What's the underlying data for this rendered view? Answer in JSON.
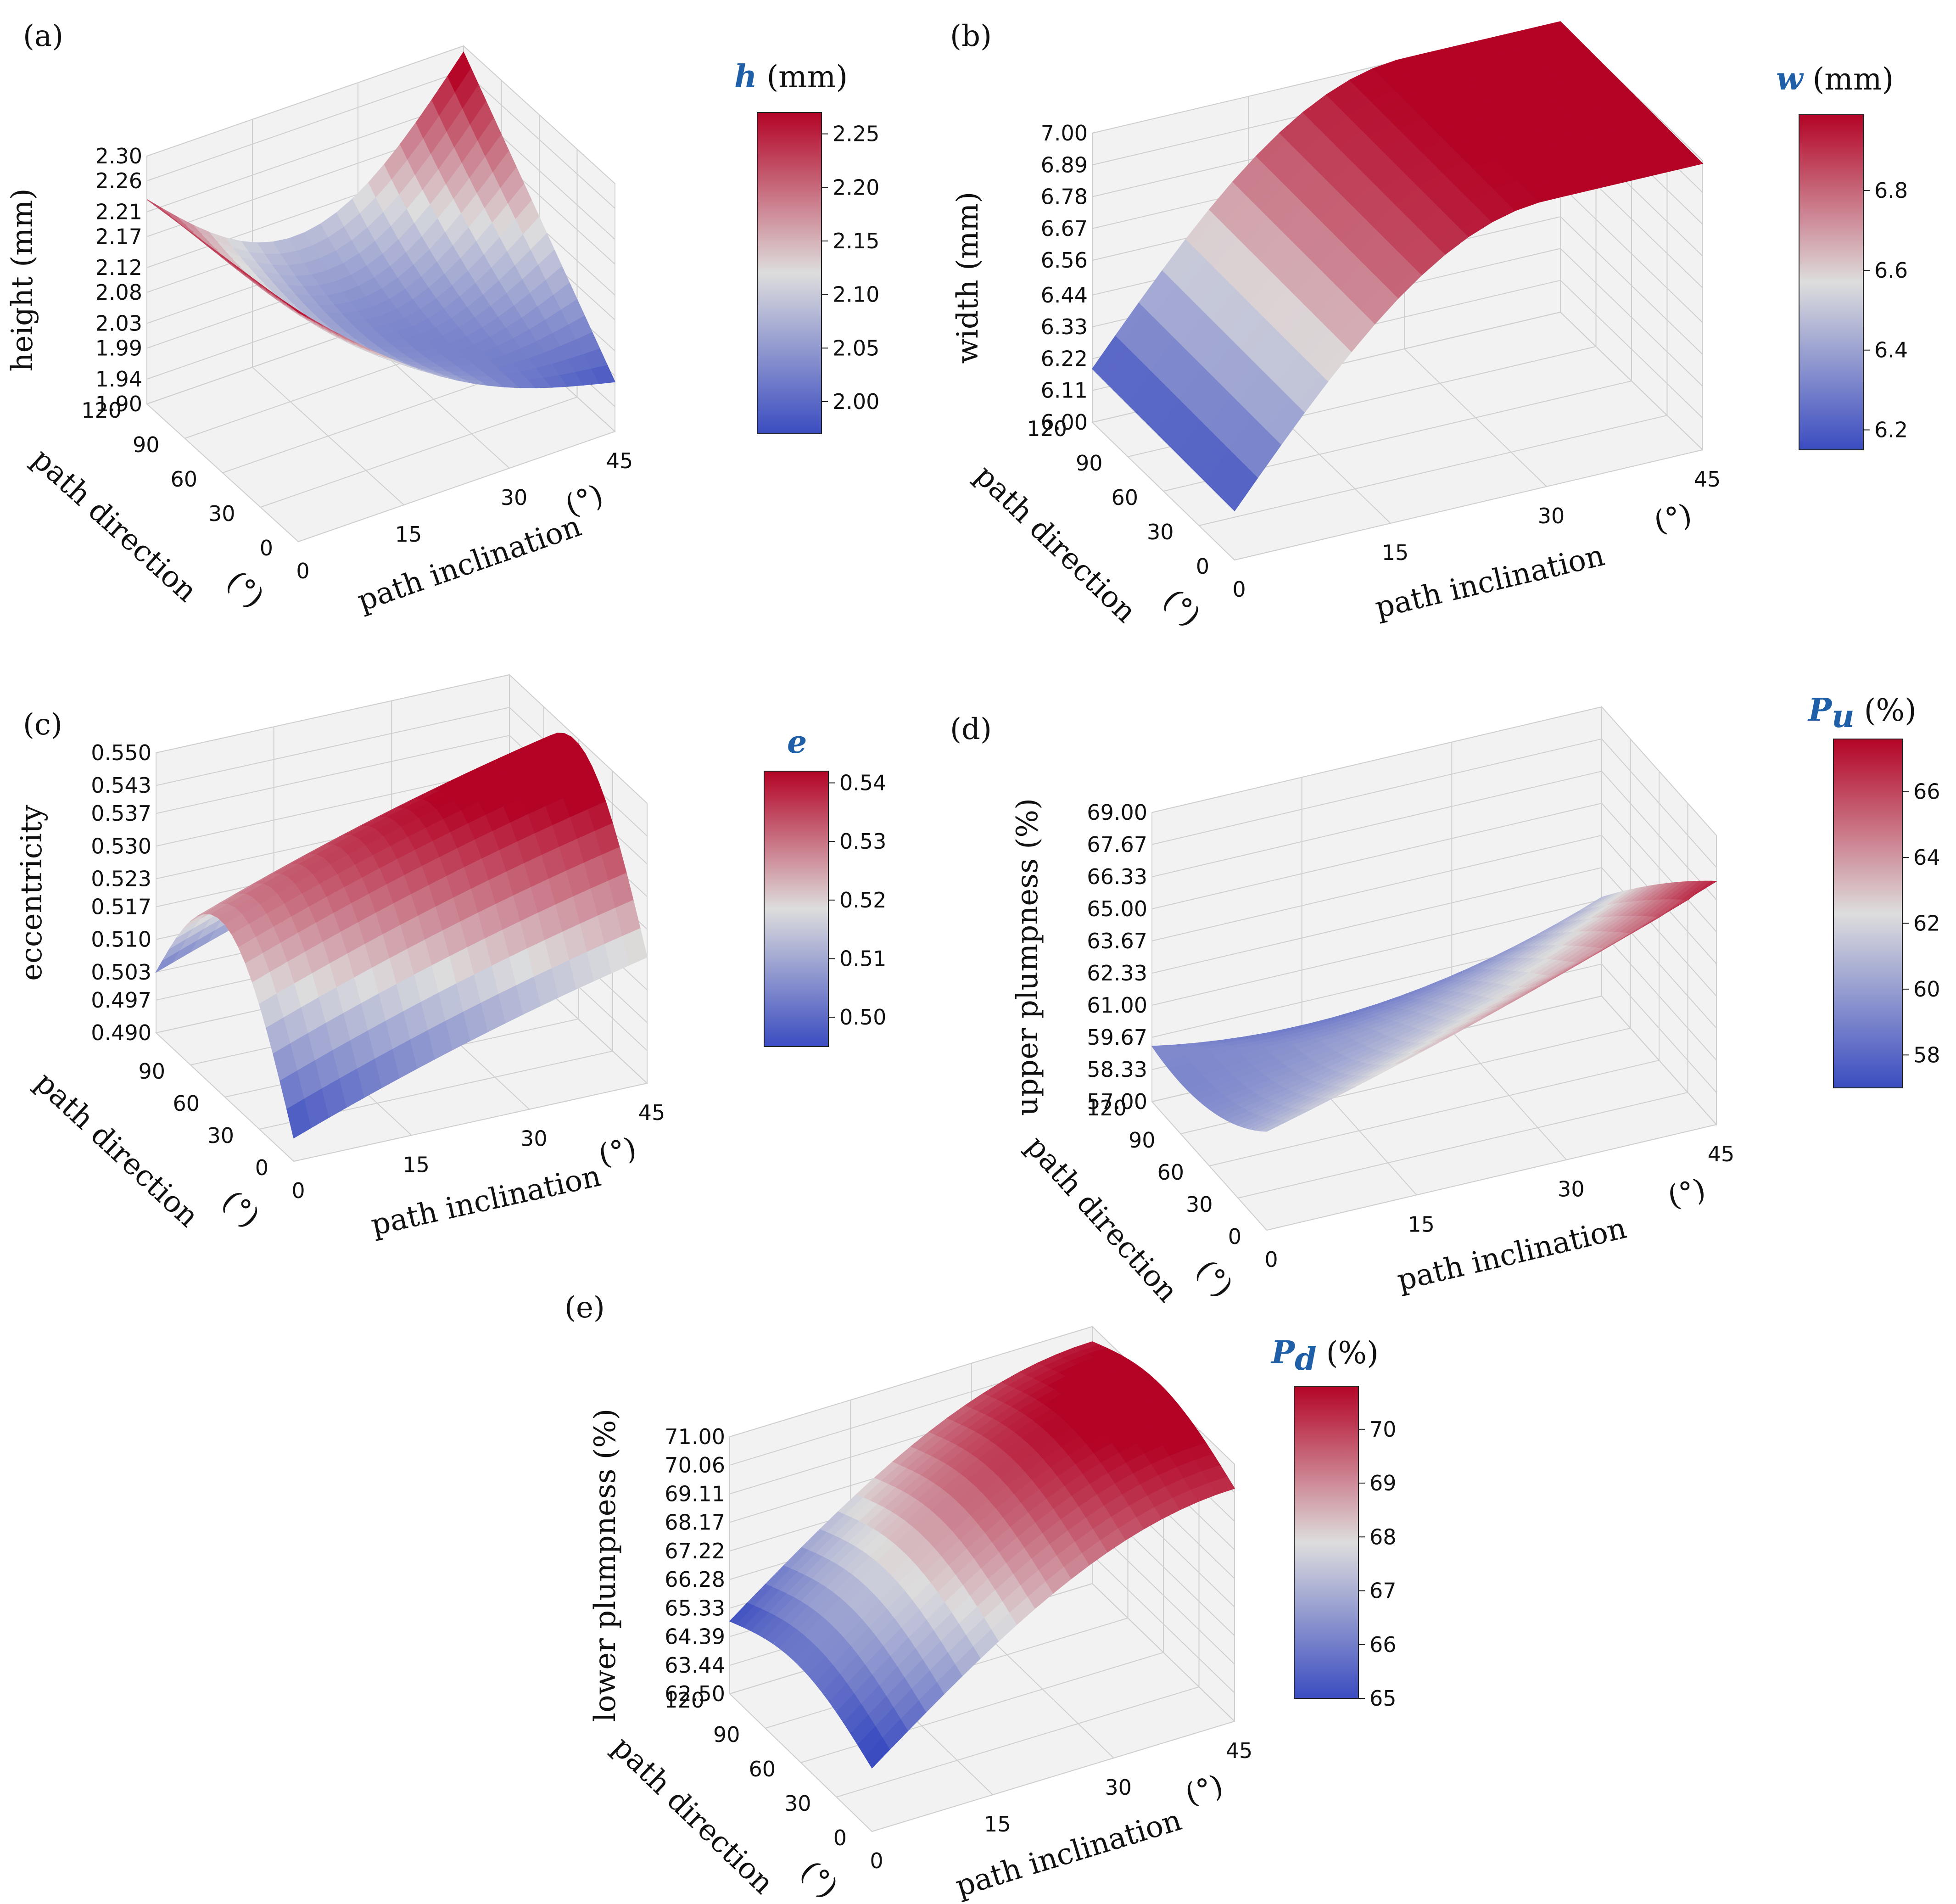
{
  "figure": {
    "colormap": {
      "name": "coolwarm",
      "low": "#3b4cc0",
      "mid": "#dddddd",
      "high": "#b40426"
    }
  },
  "chart_data": [
    {
      "id": "a",
      "panel_label": "(a)",
      "type": "surface",
      "zlabel": "height   (mm)",
      "xlabel": "path inclination",
      "xunit": "(°)",
      "ylabel": "path direction",
      "yunit": "(°)",
      "x_ticks": [
        "0",
        "15",
        "30",
        "45"
      ],
      "y_ticks": [
        "0",
        "30",
        "60",
        "90",
        "120"
      ],
      "z_ticks": [
        "1.90",
        "1.94",
        "1.99",
        "2.03",
        "2.08",
        "2.12",
        "2.17",
        "2.21",
        "2.26",
        "2.30"
      ],
      "xlim": [
        0,
        45
      ],
      "ylim": [
        0,
        120
      ],
      "zlim": [
        1.9,
        2.3
      ],
      "colorbar": {
        "symbol": "h",
        "unit": "(mm)",
        "ticks": [
          "2.00",
          "2.05",
          "2.10",
          "2.15",
          "2.20",
          "2.25"
        ],
        "range": [
          1.97,
          2.27
        ]
      },
      "surface": {
        "corners": {
          "x0_y0": 2.27,
          "x45_y0": 1.98,
          "x0_y120": 2.23,
          "x45_y120": 2.29
        },
        "saddle_min": 2.1
      }
    },
    {
      "id": "b",
      "panel_label": "(b)",
      "type": "surface",
      "zlabel": "width  (mm)",
      "xlabel": "path inclination",
      "xunit": "(°)",
      "ylabel": "path direction",
      "yunit": "(°)",
      "x_ticks": [
        "0",
        "15",
        "30",
        "45"
      ],
      "y_ticks": [
        "0",
        "30",
        "60",
        "90",
        "120"
      ],
      "z_ticks": [
        "6.00",
        "6.11",
        "6.22",
        "6.33",
        "6.44",
        "6.56",
        "6.67",
        "6.78",
        "6.89",
        "7.00"
      ],
      "xlim": [
        0,
        45
      ],
      "ylim": [
        0,
        120
      ],
      "zlim": [
        6.0,
        7.0
      ],
      "colorbar": {
        "symbol": "w",
        "unit": "(mm)",
        "ticks": [
          "6.2",
          "6.4",
          "6.6",
          "6.8"
        ],
        "range": [
          6.15,
          6.99
        ]
      },
      "surface": {
        "corners": {
          "x0_y0": 6.16,
          "x45_y0": 6.98,
          "x0_y120": 6.2,
          "x45_y120": 6.99
        },
        "peak_at_x": 30
      }
    },
    {
      "id": "c",
      "panel_label": "(c)",
      "type": "surface",
      "zlabel": "eccentricity",
      "xlabel": "path inclination",
      "xunit": "(°)",
      "ylabel": "path direction",
      "yunit": "(°)",
      "x_ticks": [
        "0",
        "15",
        "30",
        "45"
      ],
      "y_ticks": [
        "0",
        "30",
        "60",
        "90"
      ],
      "z_ticks": [
        "0.490",
        "0.497",
        "0.503",
        "0.510",
        "0.517",
        "0.523",
        "0.530",
        "0.537",
        "0.543",
        "0.550"
      ],
      "xlim": [
        0,
        45
      ],
      "ylim": [
        0,
        120
      ],
      "zlim": [
        0.49,
        0.55
      ],
      "colorbar": {
        "symbol": "e",
        "unit": "",
        "ticks": [
          "0.50",
          "0.51",
          "0.52",
          "0.53",
          "0.54"
        ],
        "range": [
          0.495,
          0.542
        ]
      },
      "surface": {
        "corners": {
          "x0_y0": 0.495,
          "x45_y0": 0.515,
          "x0_y120": 0.508,
          "x45_y120": 0.542
        },
        "ridge_y": 60
      }
    },
    {
      "id": "d",
      "panel_label": "(d)",
      "type": "surface",
      "zlabel": "upper plumpness (%)",
      "xlabel": "path inclination",
      "xunit": "(°)",
      "ylabel": "path direction",
      "yunit": "(°)",
      "x_ticks": [
        "0",
        "15",
        "30",
        "45"
      ],
      "y_ticks": [
        "0",
        "30",
        "60",
        "90",
        "120"
      ],
      "z_ticks": [
        "57.00",
        "58.33",
        "59.67",
        "61.00",
        "62.33",
        "63.67",
        "65.00",
        "66.33",
        "67.67",
        "69.00"
      ],
      "xlim": [
        0,
        45
      ],
      "ylim": [
        0,
        120
      ],
      "zlim": [
        57,
        69
      ],
      "colorbar": {
        "symbol": "P",
        "subscript": "u",
        "unit": "(%)",
        "ticks": [
          "58",
          "60",
          "62",
          "64",
          "66"
        ],
        "range": [
          57.0,
          67.6
        ]
      },
      "surface": {
        "corners": {
          "x0_y0": 60.5,
          "x45_y0": 67.4,
          "x0_y120": 62.0,
          "x45_y120": 57.5
        },
        "saddle_center": 61.0
      }
    },
    {
      "id": "e",
      "panel_label": "(e)",
      "type": "surface",
      "zlabel": "lower plumpness (%)",
      "xlabel": "path inclination",
      "xunit": "(°)",
      "ylabel": "path direction",
      "yunit": "(°)",
      "x_ticks": [
        "0",
        "15",
        "30",
        "45"
      ],
      "y_ticks": [
        "0",
        "30",
        "60",
        "90",
        "120"
      ],
      "z_ticks": [
        "62.50",
        "63.44",
        "64.39",
        "65.33",
        "66.28",
        "67.22",
        "68.17",
        "69.11",
        "70.06",
        "71.00"
      ],
      "xlim": [
        0,
        45
      ],
      "ylim": [
        0,
        120
      ],
      "zlim": [
        62.5,
        71.0
      ],
      "colorbar": {
        "symbol": "P",
        "subscript": "d",
        "unit": "(%)",
        "ticks": [
          "65",
          "66",
          "67",
          "68",
          "69",
          "70"
        ],
        "range": [
          65.0,
          70.8
        ]
      },
      "surface": {
        "corners": {
          "x0_y0": 64.9,
          "x45_y0": 70.4,
          "x0_y120": 65.6,
          "x45_y120": 70.8
        },
        "ridge_y": 60
      }
    }
  ]
}
